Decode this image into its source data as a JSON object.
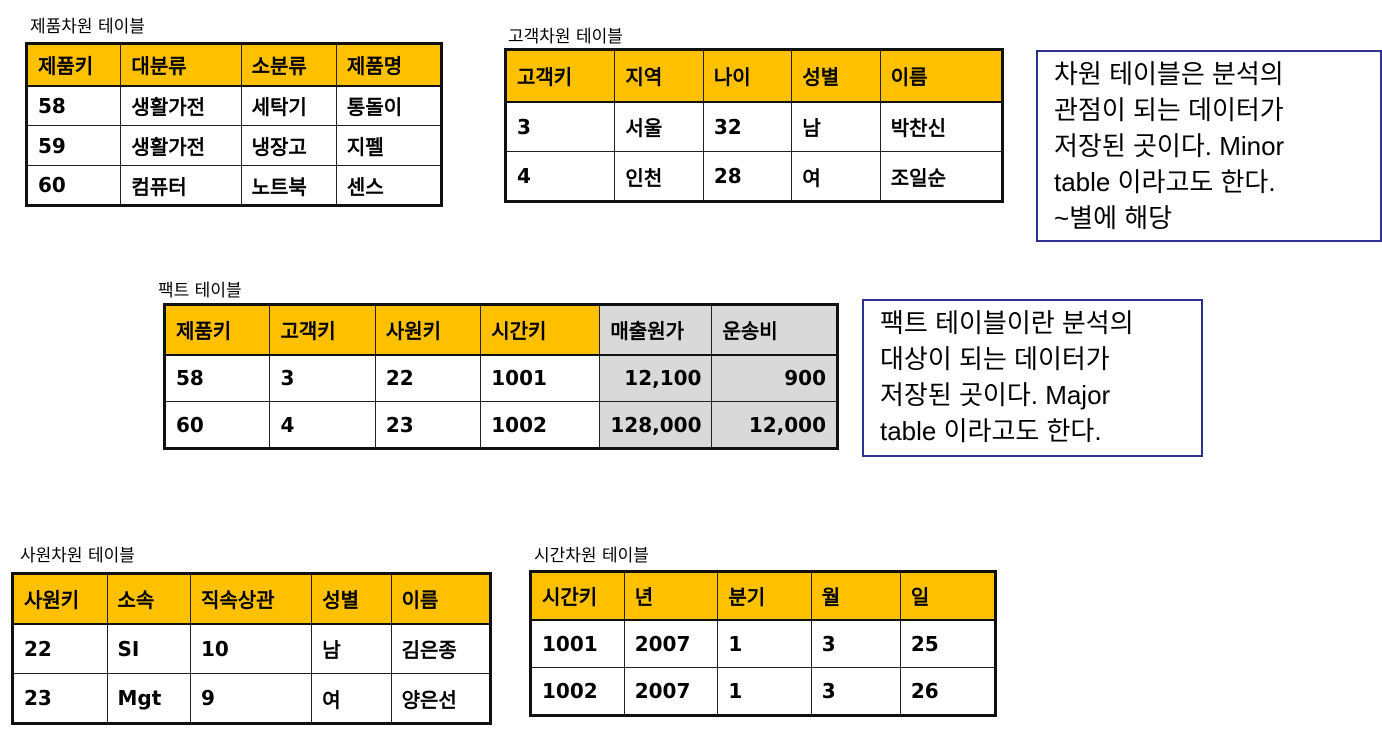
{
  "product_table": {
    "caption": "제품차원 테이블",
    "headers": [
      "제품키",
      "대분류",
      "소분류",
      "제품명"
    ],
    "rows": [
      [
        "58",
        "생활가전",
        "세탁기",
        "통돌이"
      ],
      [
        "59",
        "생활가전",
        "냉장고",
        "지펠"
      ],
      [
        "60",
        "컴퓨터",
        "노트북",
        "센스"
      ]
    ]
  },
  "customer_table": {
    "caption": "고객차원 테이블",
    "headers": [
      "고객키",
      "지역",
      "나이",
      "성별",
      "이름"
    ],
    "rows": [
      [
        "3",
        "서울",
        "32",
        "남",
        "박찬신"
      ],
      [
        "4",
        "인천",
        "28",
        "여",
        "조일순"
      ]
    ]
  },
  "dimension_note": {
    "lines": [
      "차원 테이블은 분석의",
      "관점이 되는 데이터가",
      "저장된 곳이다. Minor",
      "table 이라고도 한다.",
      "~별에 해당"
    ]
  },
  "fact_table": {
    "caption": "팩트 테이블",
    "headers": [
      "제품키",
      "고객키",
      "사원키",
      "시간키",
      "매출원가",
      "운송비"
    ],
    "rows": [
      [
        "58",
        "3",
        "22",
        "1001",
        "12,100",
        "900"
      ],
      [
        "60",
        "4",
        "23",
        "1002",
        "128,000",
        "12,000"
      ]
    ]
  },
  "fact_note": {
    "lines": [
      "팩트 테이블이란 분석의",
      "대상이 되는 데이터가",
      "저장된 곳이다. Major",
      "table 이라고도 한다."
    ]
  },
  "employee_table": {
    "caption": "사원차원 테이블",
    "headers": [
      "사원키",
      "소속",
      "직속상관",
      "성별",
      "이름"
    ],
    "rows": [
      [
        "22",
        "SI",
        "10",
        "남",
        "김은종"
      ],
      [
        "23",
        "Mgt",
        "9",
        "여",
        "양은선"
      ]
    ]
  },
  "time_table": {
    "caption": "시간차원 테이블",
    "headers": [
      "시간키",
      "년",
      "분기",
      "월",
      "일"
    ],
    "rows": [
      [
        "1001",
        "2007",
        "1",
        "3",
        "25"
      ],
      [
        "1002",
        "2007",
        "1",
        "3",
        "26"
      ]
    ]
  },
  "colors": {
    "header_fill": "#ffc000",
    "measure_fill": "#d9d9d9",
    "note_border": "#2e3192"
  }
}
